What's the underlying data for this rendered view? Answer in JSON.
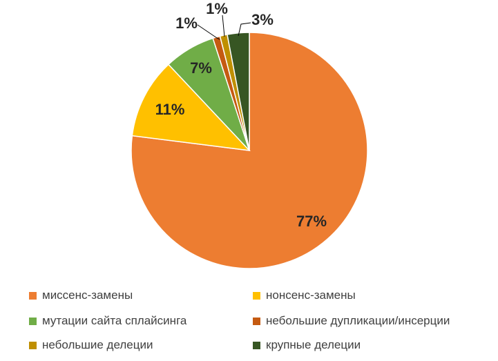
{
  "chart_data": {
    "type": "pie",
    "title": "",
    "start_angle_deg": 0,
    "direction": "clockwise",
    "legend_position": "bottom",
    "slices": [
      {
        "name": "миссенс-замены",
        "value": 77,
        "label": "77%",
        "color": "#ED7D31"
      },
      {
        "name": "нонсенс-замены",
        "value": 11,
        "label": "11%",
        "color": "#FFC000"
      },
      {
        "name": "мутации сайта сплайсинга",
        "value": 7,
        "label": "7%",
        "color": "#70AD47"
      },
      {
        "name": "небольшие дупликации/инсерции",
        "value": 1,
        "label": "1%",
        "color": "#C55A11"
      },
      {
        "name": "небольшие делеции",
        "value": 1,
        "label": "1%",
        "color": "#BF8F00"
      },
      {
        "name": "крупные делеции",
        "value": 3,
        "label": "3%",
        "color": "#375623"
      }
    ]
  }
}
